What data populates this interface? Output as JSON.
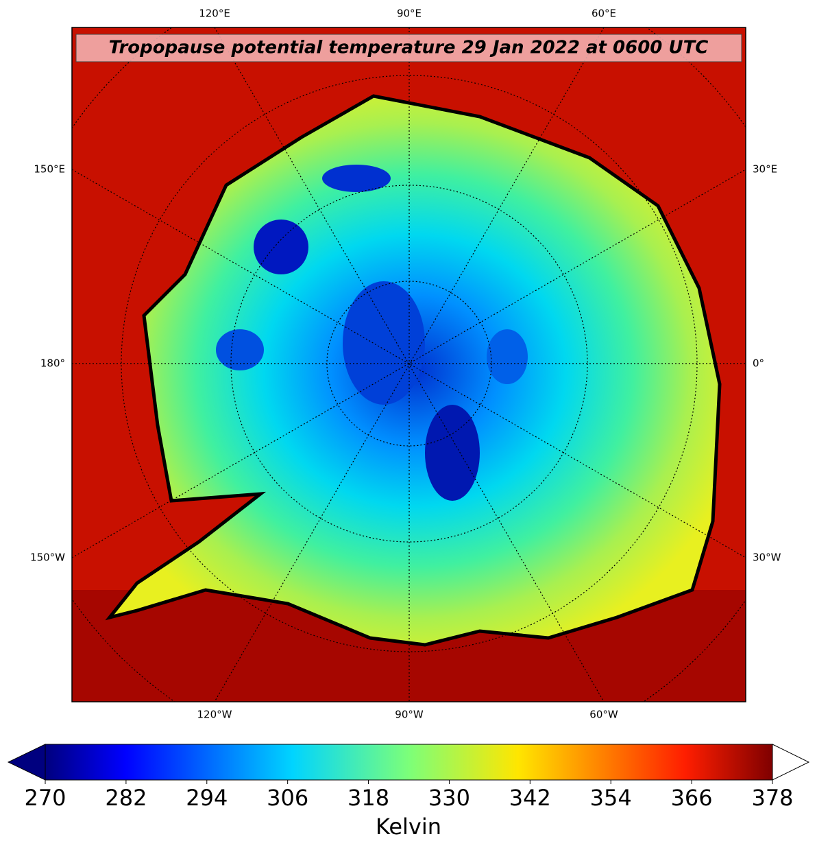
{
  "title": "Tropopause potential temperature 29 Jan 2022 at 0600 UTC",
  "map": {
    "top_labels": [
      "120°E",
      "90°E",
      "60°E"
    ],
    "bottom_labels": [
      "120°W",
      "90°W",
      "60°W"
    ],
    "left_labels": [
      "150°E",
      "180°",
      "150°W"
    ],
    "right_labels": [
      "30°E",
      "0°",
      "30°W"
    ]
  },
  "colorbar": {
    "lim": [
      270,
      378
    ],
    "ticks": [
      270,
      282,
      294,
      306,
      318,
      330,
      342,
      354,
      366,
      378
    ],
    "label": "Kelvin"
  }
}
